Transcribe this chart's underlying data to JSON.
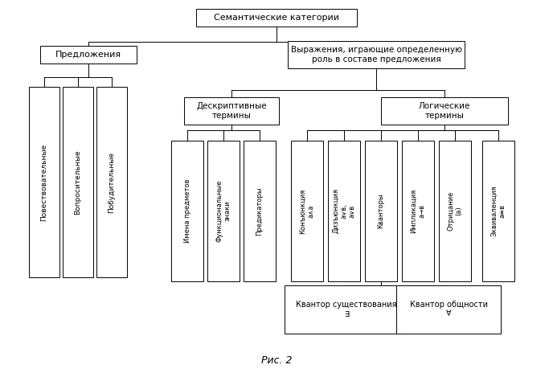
{
  "title": "Рис. 2",
  "bg": "#ffffff",
  "root_text": "Семантические категории",
  "pred_text": "Предложения",
  "vyrazh_text": "Выражения, играющие определенную\nроль в составе предложения",
  "desk_text": "Дескриптивные\nтермины",
  "log_text": "Логические\nтермины",
  "left_tall": [
    "Повествовательные",
    "Вопросительные",
    "Побудительные"
  ],
  "right_tall_desk": [
    "Имена предметов",
    "Функциональные\nзнаки",
    "Предикаторы"
  ],
  "right_tall_log": [
    "Конъюнкция\nа∧а",
    "Дизъюнкция\nа∨в,\nа∨в",
    "Кванторы",
    "Импликация\nа→в",
    "Отрицание\n(а)",
    "Эквиваленция\nа≡в"
  ],
  "quant_sush": "Квантор существования\n∃",
  "quant_obsh": "Квантор общности\n∀"
}
